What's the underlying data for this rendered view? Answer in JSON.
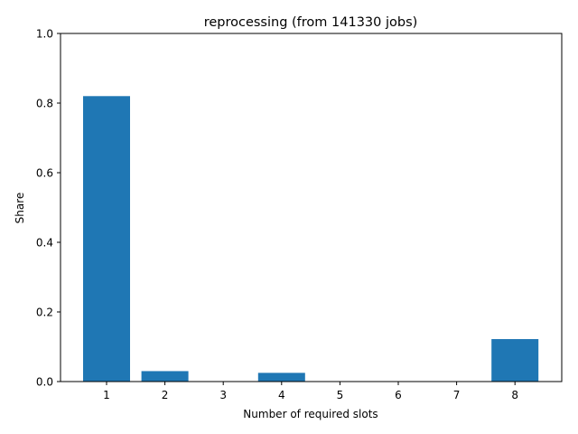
{
  "chart_data": {
    "type": "bar",
    "title": "reprocessing (from 141330 jobs)",
    "xlabel": "Number of required slots",
    "ylabel": "Share",
    "categories": [
      "1",
      "2",
      "3",
      "4",
      "5",
      "6",
      "7",
      "8"
    ],
    "values": [
      0.82,
      0.03,
      0.0,
      0.025,
      0.0,
      0.0,
      0.0,
      0.122
    ],
    "ylim": [
      0,
      1.0
    ],
    "yticks": [
      0.0,
      0.2,
      0.4,
      0.6,
      0.8,
      1.0
    ],
    "ytick_labels": [
      "0.0",
      "0.2",
      "0.4",
      "0.6",
      "0.8",
      "1.0"
    ],
    "grid": false,
    "bar_color": "#1f77b4"
  }
}
